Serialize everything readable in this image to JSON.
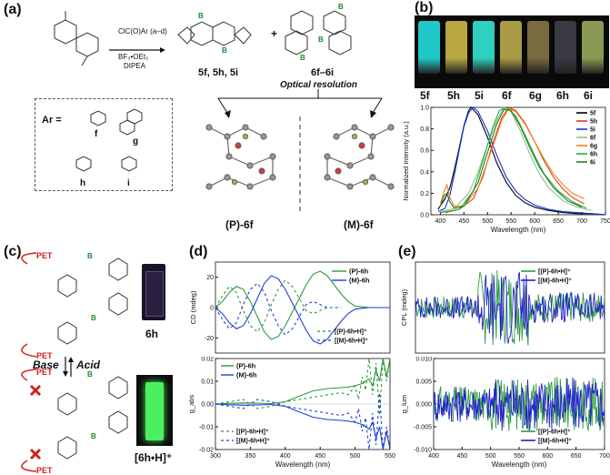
{
  "panels": {
    "a": "(a)",
    "b": "(b)",
    "c": "(c)",
    "d": "(d)",
    "e": "(e)"
  },
  "panel_a": {
    "reagent_top": "ClC(O)Ar (a–d)",
    "reagents": [
      "BF₃•OEt₂",
      "DIPEA"
    ],
    "product_1": "5f, 5h, 5i",
    "product_2": "6f–6i",
    "plus": "+",
    "resolution": "Optical resolution",
    "ar_label": "Ar =",
    "ar_codes": [
      "f",
      "g",
      "h",
      "i"
    ],
    "enantiomer_p": "(P)-6f",
    "enantiomer_m": "(M)-6f"
  },
  "panel_b": {
    "vial_labels": [
      "5f",
      "5h",
      "5i",
      "6f",
      "6g",
      "6h",
      "6i"
    ],
    "vial_colors": [
      "#1ec8c8",
      "#b8a640",
      "#2fd0c0",
      "#a99a45",
      "#7a6a40",
      "#3a3a44",
      "#8a9a55"
    ]
  },
  "panel_c": {
    "pet": "PET",
    "base": "Base",
    "acid": "Acid",
    "compound_1": "6h",
    "compound_2": "[6h•H]⁺"
  },
  "chart_data": [
    {
      "type": "line",
      "panel": "b",
      "xlabel": "Wavelength (nm)",
      "ylabel": "Normalized Intensity (a.u.)",
      "xlim": [
        380,
        750
      ],
      "ylim": [
        0,
        1.0
      ],
      "xticks": [
        400,
        450,
        500,
        550,
        600,
        650,
        700,
        750
      ],
      "yticks": [
        0.0,
        0.2,
        0.4,
        0.6,
        0.8,
        1.0
      ],
      "legend_position": "top-right",
      "series": [
        {
          "name": "5f",
          "color": "#000000",
          "x": [
            395,
            410,
            420,
            430,
            440,
            450,
            460,
            465,
            480,
            500,
            520,
            540,
            560,
            580,
            600,
            630,
            660,
            690,
            720,
            750
          ],
          "y": [
            0.05,
            0.15,
            0.25,
            0.42,
            0.62,
            0.83,
            0.97,
            1.0,
            0.93,
            0.72,
            0.48,
            0.3,
            0.18,
            0.11,
            0.07,
            0.04,
            0.02,
            0.01,
            0.01,
            0.0
          ]
        },
        {
          "name": "5h",
          "color": "#e04010",
          "x": [
            410,
            440,
            470,
            490,
            510,
            530,
            545,
            560,
            580,
            600,
            620,
            640,
            660,
            680,
            705
          ],
          "y": [
            0.02,
            0.05,
            0.15,
            0.35,
            0.65,
            0.9,
            1.0,
            0.97,
            0.85,
            0.68,
            0.5,
            0.35,
            0.24,
            0.16,
            0.1
          ]
        },
        {
          "name": "5i",
          "color": "#1030e0",
          "x": [
            395,
            410,
            420,
            430,
            440,
            450,
            460,
            470,
            480,
            500,
            520,
            540,
            560,
            580,
            600,
            630,
            660,
            690,
            720,
            750
          ],
          "y": [
            0.03,
            0.06,
            0.18,
            0.38,
            0.6,
            0.82,
            0.95,
            1.0,
            0.96,
            0.78,
            0.55,
            0.35,
            0.22,
            0.14,
            0.09,
            0.05,
            0.03,
            0.02,
            0.01,
            0.0
          ]
        },
        {
          "name": "6f",
          "color": "#90c090",
          "x": [
            400,
            430,
            460,
            480,
            500,
            520,
            535,
            550,
            570,
            590,
            610,
            630,
            660,
            690,
            720
          ],
          "y": [
            0.03,
            0.06,
            0.2,
            0.4,
            0.65,
            0.88,
            1.0,
            0.96,
            0.78,
            0.56,
            0.38,
            0.25,
            0.13,
            0.07,
            0.04
          ]
        },
        {
          "name": "6g",
          "color": "#f08020",
          "x": [
            400,
            408,
            414,
            420,
            430,
            450,
            480,
            510,
            530,
            545,
            560,
            580,
            600,
            620,
            640,
            660,
            680,
            705
          ],
          "y": [
            0.1,
            0.22,
            0.28,
            0.16,
            0.08,
            0.08,
            0.25,
            0.62,
            0.88,
            0.99,
            0.96,
            0.84,
            0.68,
            0.52,
            0.38,
            0.28,
            0.2,
            0.15
          ]
        },
        {
          "name": "6h",
          "color": "#20b040",
          "x": [
            400,
            440,
            470,
            490,
            510,
            525,
            540,
            560,
            580,
            600,
            620,
            650,
            680,
            710
          ],
          "y": [
            0.02,
            0.05,
            0.22,
            0.5,
            0.8,
            0.97,
            1.0,
            0.92,
            0.74,
            0.55,
            0.38,
            0.22,
            0.12,
            0.06
          ]
        },
        {
          "name": "6i",
          "color": "#208020",
          "x": [
            400,
            408,
            414,
            420,
            430,
            450,
            480,
            500,
            520,
            535,
            550,
            570,
            590,
            610,
            640,
            670,
            700
          ],
          "y": [
            0.08,
            0.18,
            0.2,
            0.12,
            0.06,
            0.08,
            0.3,
            0.58,
            0.85,
            0.98,
            0.97,
            0.82,
            0.62,
            0.44,
            0.25,
            0.13,
            0.07
          ]
        }
      ]
    },
    {
      "type": "line",
      "panel": "d-top",
      "ylabel": "CD (mdeg)",
      "xlim": [
        300,
        550
      ],
      "ylim": [
        -30,
        30
      ],
      "yticks": [
        -20,
        0,
        20
      ],
      "legend_top": [
        "(P)-6h",
        "(M)-6h"
      ],
      "legend_bottom": [
        "[(P)-6h•H]⁺",
        "[(M)-6h•H]⁺"
      ],
      "series": [
        {
          "name": "(P)-6h",
          "color": "#2e9a3e",
          "dash": "",
          "x": [
            300,
            310,
            320,
            330,
            340,
            350,
            360,
            370,
            380,
            390,
            400,
            410,
            420,
            430,
            440,
            450,
            460,
            470,
            480,
            490,
            500,
            510,
            520,
            530,
            540,
            550
          ],
          "y": [
            0,
            4,
            10,
            14,
            12,
            4,
            -6,
            -16,
            -21,
            -19,
            -12,
            -3,
            6,
            15,
            22,
            24,
            21,
            15,
            9,
            4,
            1,
            0.5,
            0,
            0,
            0,
            0
          ]
        },
        {
          "name": "(M)-6h",
          "color": "#2040d0",
          "dash": "",
          "x": [
            300,
            310,
            320,
            330,
            340,
            350,
            360,
            370,
            380,
            390,
            400,
            410,
            420,
            430,
            440,
            450,
            460,
            470,
            480,
            490,
            500,
            510,
            520,
            530,
            540,
            550
          ],
          "y": [
            0,
            -4,
            -10,
            -14,
            -12,
            -4,
            6,
            16,
            21,
            19,
            12,
            3,
            -6,
            -15,
            -22,
            -24,
            -21,
            -15,
            -9,
            -4,
            -1,
            -0.5,
            0,
            0,
            0,
            0
          ]
        },
        {
          "name": "[(P)-6h•H]⁺",
          "color": "#2e9a3e",
          "dash": "3,3",
          "x": [
            300,
            310,
            320,
            330,
            340,
            350,
            360,
            370,
            380,
            390,
            400,
            410,
            420,
            430,
            440,
            450,
            460,
            470,
            480
          ],
          "y": [
            0,
            8,
            14,
            10,
            -2,
            -12,
            -16,
            -10,
            2,
            12,
            18,
            14,
            6,
            -2,
            -4,
            -2,
            0,
            0,
            0
          ]
        },
        {
          "name": "[(M)-6h•H]⁺",
          "color": "#2040d0",
          "dash": "3,3",
          "x": [
            300,
            310,
            320,
            330,
            340,
            350,
            360,
            370,
            380,
            390,
            400,
            410,
            420,
            430,
            440,
            450,
            460,
            470,
            480
          ],
          "y": [
            0,
            -8,
            -14,
            -10,
            2,
            12,
            16,
            10,
            -2,
            -12,
            -18,
            -14,
            -6,
            2,
            4,
            2,
            0,
            0,
            0
          ]
        }
      ]
    },
    {
      "type": "line",
      "panel": "d-bottom",
      "xlabel": "Wavelength (nm)",
      "ylabel": "g_abs",
      "xlim": [
        300,
        550
      ],
      "ylim": [
        -0.02,
        0.02
      ],
      "xticks": [
        300,
        350,
        400,
        450,
        500,
        550
      ],
      "yticks": [
        -0.02,
        -0.01,
        0.0,
        0.01,
        0.02
      ],
      "legend_top": [
        "(P)-6h",
        "(M)-6h"
      ],
      "legend_bottom": [
        "[(P)-6h•H]⁺",
        "[(M)-6h•H]⁺"
      ],
      "series": [
        {
          "name": "(P)-6h",
          "color": "#2e9a3e",
          "dash": "",
          "x": [
            300,
            320,
            340,
            360,
            380,
            400,
            420,
            440,
            460,
            480,
            490,
            500,
            510,
            520,
            525,
            530,
            535,
            540,
            545,
            550
          ],
          "y": [
            0,
            0.0003,
            0.0005,
            0.0004,
            0.0002,
            0.001,
            0.0035,
            0.0058,
            0.0068,
            0.0072,
            0.0075,
            0.008,
            0.009,
            0.011,
            0.008,
            0.015,
            0.01,
            0.02,
            0.012,
            0.02
          ]
        },
        {
          "name": "(M)-6h",
          "color": "#2040d0",
          "dash": "",
          "x": [
            300,
            320,
            340,
            360,
            380,
            400,
            420,
            440,
            460,
            480,
            490,
            500,
            510,
            520,
            525,
            530,
            535,
            540,
            545,
            550
          ],
          "y": [
            0,
            -0.0003,
            -0.0005,
            -0.0004,
            -0.0002,
            -0.001,
            -0.0035,
            -0.0058,
            -0.0068,
            -0.0072,
            -0.0075,
            -0.008,
            -0.009,
            -0.011,
            -0.008,
            -0.015,
            -0.01,
            -0.02,
            -0.012,
            -0.02
          ]
        },
        {
          "name": "[(P)-6h•H]⁺",
          "color": "#2e9a3e",
          "dash": "3,3",
          "x": [
            300,
            320,
            340,
            360,
            380,
            400,
            420,
            440,
            460,
            480,
            490,
            500,
            505,
            510,
            515,
            520,
            525,
            530,
            535,
            540,
            545,
            550
          ],
          "y": [
            0,
            0.001,
            0.002,
            -0.002,
            -0.001,
            0.001,
            0.002,
            0.003,
            0.004,
            0.005,
            0.004,
            0.008,
            0.002,
            0.012,
            0.006,
            0.02,
            0.004,
            0.018,
            -0.005,
            0.02,
            0.01,
            0.02
          ]
        },
        {
          "name": "[(M)-6h•H]⁺",
          "color": "#2040d0",
          "dash": "3,3",
          "x": [
            300,
            320,
            340,
            360,
            380,
            400,
            420,
            440,
            460,
            480,
            490,
            500,
            505,
            510,
            515,
            520,
            525,
            530,
            535,
            540,
            545,
            550
          ],
          "y": [
            0,
            -0.001,
            -0.002,
            0.002,
            0.001,
            -0.001,
            -0.002,
            -0.003,
            -0.004,
            -0.005,
            -0.004,
            -0.008,
            -0.002,
            -0.012,
            -0.006,
            -0.02,
            -0.004,
            -0.018,
            0.005,
            -0.02,
            -0.01,
            -0.02
          ]
        }
      ]
    },
    {
      "type": "line",
      "panel": "e-top",
      "ylabel": "CPL (mdeg)",
      "xlim": [
        400,
        700
      ],
      "legend": [
        "[(P)-6h•H]⁺",
        "[(M)-6h•H]⁺"
      ],
      "series": [
        {
          "name": "[(P)-6h•H]⁺",
          "color": "#2e9a3e",
          "amplitude": [
            0.3,
            1.0,
            0.4
          ]
        },
        {
          "name": "[(M)-6h•H]⁺",
          "color": "#2020d0",
          "amplitude": [
            0.3,
            1.0,
            0.4
          ]
        }
      ]
    },
    {
      "type": "line",
      "panel": "e-bottom",
      "xlabel": "Wavelength (nm)",
      "ylabel": "g_lum",
      "xlim": [
        400,
        700
      ],
      "ylim": [
        -0.01,
        0.01
      ],
      "xticks": [
        400,
        450,
        500,
        550,
        600,
        650,
        700
      ],
      "yticks": [
        -0.01,
        -0.005,
        0.0,
        0.005,
        0.01
      ],
      "legend": [
        "[(P)-6h•H]⁺",
        "[(M)-6h•H]⁺"
      ],
      "series": [
        {
          "name": "[(P)-6h•H]⁺",
          "color": "#2e9a3e",
          "amplitude": [
            0.004,
            0.006,
            0.006
          ]
        },
        {
          "name": "[(M)-6h•H]⁺",
          "color": "#2020d0",
          "amplitude": [
            0.004,
            0.006,
            0.006
          ]
        }
      ]
    }
  ]
}
